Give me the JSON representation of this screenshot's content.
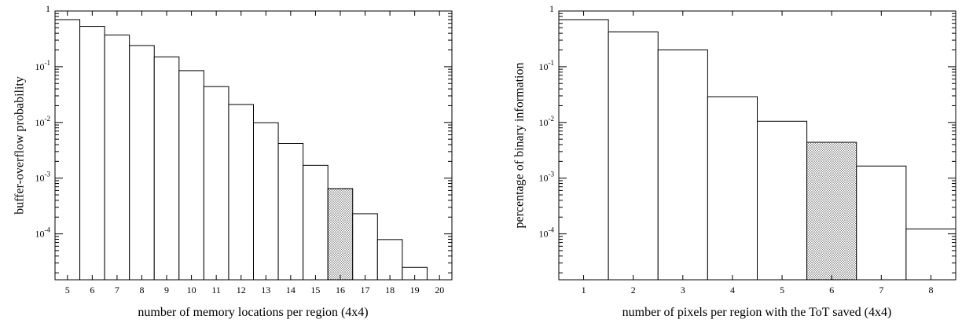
{
  "chart_data": [
    {
      "type": "bar",
      "ylog": true,
      "ylabel": "buffer-overflow probability",
      "xlabel": "number of memory locations per region (4x4)",
      "xlim": [
        4.5,
        20.5
      ],
      "ylim": [
        1.5e-05,
        1
      ],
      "xticks": [
        "5",
        "6",
        "7",
        "8",
        "9",
        "10",
        "11",
        "12",
        "13",
        "14",
        "15",
        "16",
        "17",
        "18",
        "19",
        "20"
      ],
      "yticks": [
        {
          "value": 1,
          "base": "1",
          "exp": ""
        },
        {
          "value": 0.1,
          "base": "10",
          "exp": "-1"
        },
        {
          "value": 0.01,
          "base": "10",
          "exp": "-2"
        },
        {
          "value": 0.001,
          "base": "10",
          "exp": "-3"
        },
        {
          "value": 0.0001,
          "base": "10",
          "exp": "-4"
        }
      ],
      "grid": false,
      "categories": [
        5,
        6,
        7,
        8,
        9,
        10,
        11,
        12,
        13,
        14,
        15,
        16,
        17,
        18,
        19
      ],
      "values": [
        0.7,
        0.53,
        0.37,
        0.24,
        0.15,
        0.085,
        0.044,
        0.021,
        0.0099,
        0.0042,
        0.0017,
        0.00065,
        0.00023,
        7.9e-05,
        2.5e-05
      ],
      "highlight": [
        16
      ]
    },
    {
      "type": "bar",
      "ylog": true,
      "ylabel": "percentage of binary information",
      "xlabel": "number of pixels per region with the ToT saved (4x4)",
      "xlim": [
        0.5,
        8.5
      ],
      "ylim": [
        1.5e-05,
        1
      ],
      "xticks": [
        "1",
        "2",
        "3",
        "4",
        "5",
        "6",
        "7",
        "8"
      ],
      "yticks": [
        {
          "value": 1,
          "base": "1",
          "exp": ""
        },
        {
          "value": 0.1,
          "base": "10",
          "exp": "-1"
        },
        {
          "value": 0.01,
          "base": "10",
          "exp": "-2"
        },
        {
          "value": 0.001,
          "base": "10",
          "exp": "-3"
        },
        {
          "value": 0.0001,
          "base": "10",
          "exp": "-4"
        }
      ],
      "grid": false,
      "categories": [
        1,
        2,
        3,
        4,
        5,
        6,
        7,
        8
      ],
      "values": [
        0.7,
        0.42,
        0.2,
        0.029,
        0.0105,
        0.0044,
        0.00165,
        0.000123
      ],
      "highlight": [
        6
      ]
    }
  ],
  "colors": {
    "bar_fill": "#ffffff",
    "bar_stroke": "#000000",
    "highlight_dot": "#555555"
  }
}
